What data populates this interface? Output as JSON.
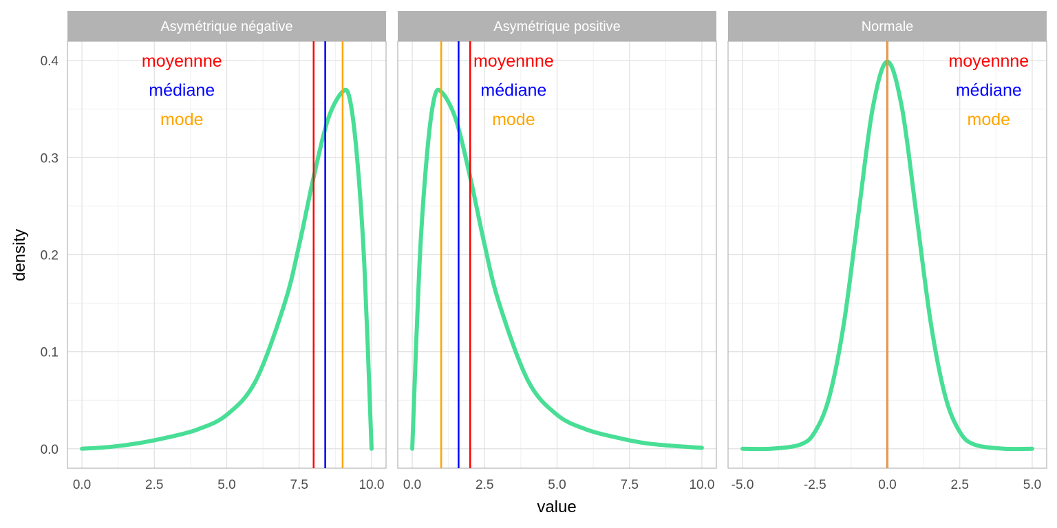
{
  "chart_data": {
    "type": "line",
    "xlabel": "value",
    "ylabel": "density",
    "ylim": [
      -0.02,
      0.42
    ],
    "y_ticks": [
      0.0,
      0.1,
      0.2,
      0.3,
      0.4
    ],
    "y_tick_labels": [
      "0.0",
      "0.1",
      "0.2",
      "0.3",
      "0.4"
    ],
    "grid": true,
    "curve_color": "#48DE96",
    "colors": {
      "moyenne": "#FF0000",
      "mediane": "#0000FF",
      "mode": "#FFA500"
    },
    "annotation_labels": {
      "moyenne": "moyennne",
      "mediane": "médiane",
      "mode": "mode"
    },
    "panels": [
      {
        "title": "Asymétrique négative",
        "xlim": [
          -0.5,
          10.5
        ],
        "x_ticks": [
          0,
          2.5,
          5,
          7.5,
          10
        ],
        "x_tick_labels": [
          "0.0",
          "2.5",
          "5.0",
          "7.5",
          "10.0"
        ],
        "annotation_x": 3.45,
        "lines": {
          "moyenne": 8.0,
          "mediane": 8.4,
          "mode": 9.0
        },
        "x": [
          0,
          1,
          2,
          3,
          4,
          5,
          6,
          7,
          7.5,
          8,
          8.5,
          9,
          9.25,
          9.5,
          9.75,
          10
        ],
        "y": [
          0.0,
          0.002,
          0.006,
          0.012,
          0.02,
          0.035,
          0.07,
          0.15,
          0.21,
          0.28,
          0.34,
          0.368,
          0.36,
          0.3,
          0.19,
          0.0
        ]
      },
      {
        "title": "Asymétrique positive",
        "xlim": [
          -0.5,
          10.5
        ],
        "x_ticks": [
          0,
          2.5,
          5,
          7.5,
          10
        ],
        "x_tick_labels": [
          "0.0",
          "2.5",
          "5.0",
          "7.5",
          "10.0"
        ],
        "annotation_x": 3.5,
        "lines": {
          "moyenne": 2.0,
          "mediane": 1.6,
          "mode": 1.0
        },
        "x": [
          0,
          0.25,
          0.5,
          0.75,
          1,
          1.5,
          2,
          2.5,
          3,
          4,
          5,
          6,
          7,
          8,
          9,
          10
        ],
        "y": [
          0.0,
          0.19,
          0.3,
          0.36,
          0.368,
          0.34,
          0.28,
          0.21,
          0.15,
          0.07,
          0.035,
          0.02,
          0.012,
          0.006,
          0.003,
          0.001
        ]
      },
      {
        "title": "Normale",
        "xlim": [
          -5.5,
          5.5
        ],
        "x_ticks": [
          -5,
          -2.5,
          0,
          2.5,
          5
        ],
        "x_tick_labels": [
          "-5.0",
          "-2.5",
          "0.0",
          "2.5",
          "5.0"
        ],
        "annotation_x": 3.5,
        "lines": {
          "moyenne": 0.0,
          "mediane": 0.0,
          "mode": 0.0
        },
        "x": [
          -5,
          -4,
          -3,
          -2.5,
          -2,
          -1.5,
          -1,
          -0.5,
          0,
          0.5,
          1,
          1.5,
          2,
          2.5,
          3,
          4,
          5
        ],
        "y": [
          0.0,
          0.0001,
          0.0044,
          0.0175,
          0.054,
          0.1295,
          0.242,
          0.352,
          0.399,
          0.352,
          0.242,
          0.1295,
          0.054,
          0.0175,
          0.0044,
          0.0001,
          0.0
        ]
      }
    ]
  }
}
